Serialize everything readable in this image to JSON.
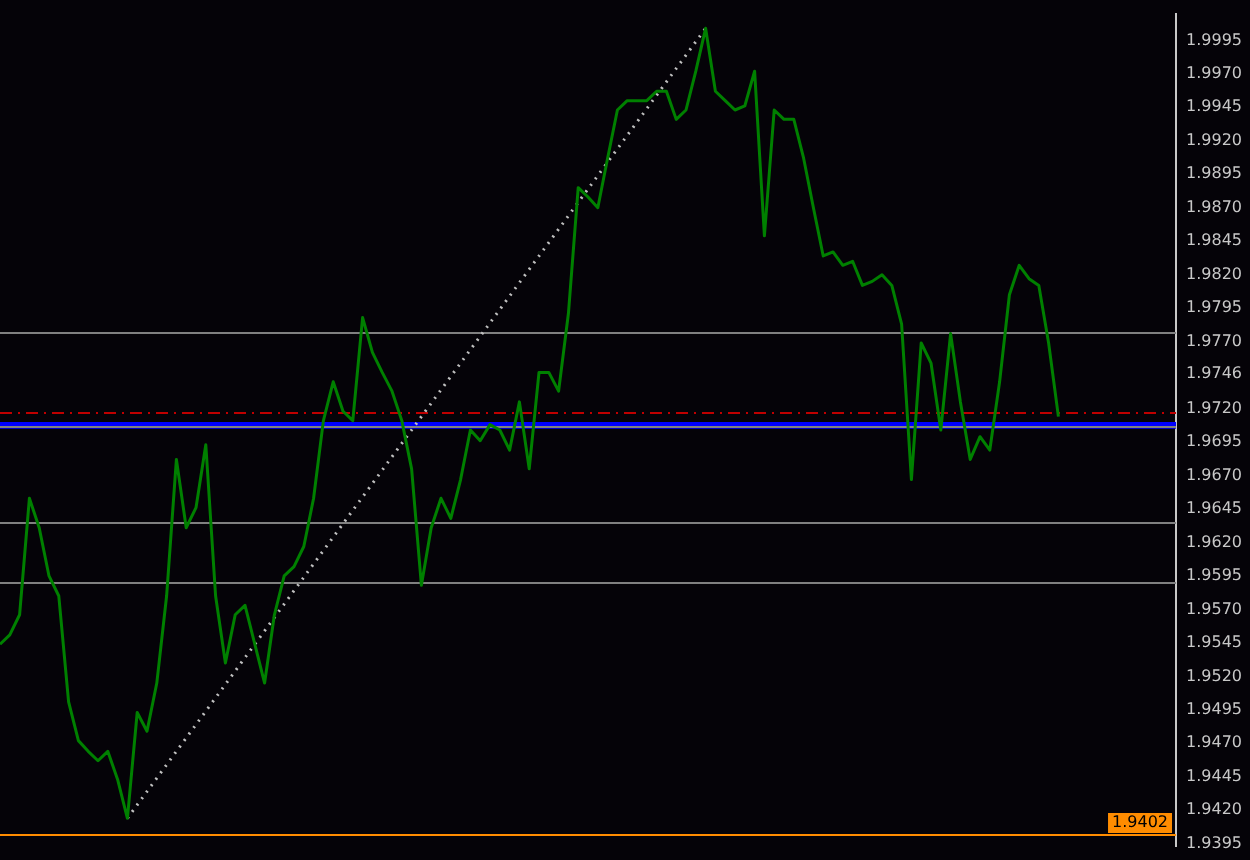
{
  "chart_data": {
    "type": "line",
    "tick_labels": "y",
    "grid": false,
    "legend": false,
    "marker": "none",
    "categories": [
      null,
      null,
      null,
      null,
      null,
      null,
      null,
      null,
      null,
      null,
      null,
      null,
      null,
      null,
      null,
      null,
      null,
      null,
      null,
      null,
      null,
      null,
      null,
      null,
      null,
      null,
      null,
      null,
      null,
      null,
      null,
      null,
      null,
      null,
      null,
      null,
      null,
      null,
      null,
      null,
      null,
      null,
      null,
      null,
      null,
      null,
      null,
      null,
      null,
      null,
      null,
      null,
      null,
      null,
      null,
      null,
      null,
      null,
      null,
      null,
      null,
      null,
      null,
      null,
      null,
      null,
      null,
      null,
      null,
      null,
      null,
      null,
      null,
      null,
      null,
      null,
      null,
      null,
      null,
      null,
      null,
      null,
      null,
      null,
      null,
      null,
      null,
      null,
      null,
      null,
      null,
      null,
      null,
      null,
      null,
      null,
      null,
      null,
      null,
      null,
      null,
      null,
      null,
      null,
      null,
      null,
      null,
      null,
      null,
      null,
      null,
      null,
      null,
      null,
      null,
      null,
      null,
      null,
      null,
      null,
      null
    ],
    "ylim": [
      1.9393,
      2.0015
    ],
    "yticks": [
      {
        "value": 1.9995,
        "label": "1.9995"
      },
      {
        "value": 1.997,
        "label": "1.9970"
      },
      {
        "value": 1.9945,
        "label": "1.9945"
      },
      {
        "value": 1.992,
        "label": "1.9920"
      },
      {
        "value": 1.9895,
        "label": "1.9895"
      },
      {
        "value": 1.987,
        "label": "1.9870"
      },
      {
        "value": 1.9845,
        "label": "1.9845"
      },
      {
        "value": 1.982,
        "label": "1.9820"
      },
      {
        "value": 1.9795,
        "label": "1.9795"
      },
      {
        "value": 1.977,
        "label": "1.9770"
      },
      {
        "value": 1.9746,
        "label": "1.9746"
      },
      {
        "value": 1.972,
        "label": "1.9720"
      },
      {
        "value": 1.9695,
        "label": "1.9695"
      },
      {
        "value": 1.967,
        "label": "1.9670"
      },
      {
        "value": 1.9645,
        "label": "1.9645"
      },
      {
        "value": 1.962,
        "label": "1.9620"
      },
      {
        "value": 1.9595,
        "label": "1.9595"
      },
      {
        "value": 1.957,
        "label": "1.9570"
      },
      {
        "value": 1.9545,
        "label": "1.9545"
      },
      {
        "value": 1.952,
        "label": "1.9520"
      },
      {
        "value": 1.9495,
        "label": "1.9495"
      },
      {
        "value": 1.947,
        "label": "1.9470"
      },
      {
        "value": 1.9445,
        "label": "1.9445"
      },
      {
        "value": 1.942,
        "label": "1.9420"
      },
      {
        "value": 1.9395,
        "label": "1.9395"
      }
    ],
    "series": [
      {
        "color": "#008000",
        "values": [
          1.9544,
          1.9551,
          1.9566,
          1.9653,
          1.9631,
          1.9595,
          1.958,
          1.9501,
          1.9472,
          1.9464,
          1.9457,
          1.9464,
          1.9443,
          1.9414,
          1.9493,
          1.9479,
          1.9515,
          1.958,
          1.9682,
          1.9631,
          1.9646,
          1.9693,
          1.958,
          1.953,
          1.9566,
          1.9573,
          1.9544,
          1.9515,
          1.9566,
          1.9595,
          1.9602,
          1.9617,
          1.9653,
          1.9711,
          1.974,
          1.9718,
          1.9711,
          1.9788,
          1.9762,
          1.9747,
          1.9733,
          1.9711,
          1.9675,
          1.9588,
          1.9631,
          1.9653,
          1.9638,
          1.9667,
          1.9704,
          1.9696,
          1.9708,
          1.9704,
          1.9689,
          1.9725,
          1.9675,
          1.9747,
          1.9747,
          1.9733,
          1.9791,
          1.9885,
          1.9878,
          1.987,
          1.9907,
          1.9943,
          1.995,
          1.995,
          1.995,
          1.9957,
          1.9957,
          1.9936,
          1.9943,
          1.9972,
          2.0004,
          1.9957,
          1.995,
          1.9943,
          1.9946,
          1.9972,
          1.9849,
          1.9943,
          1.9936,
          1.9936,
          1.9907,
          1.987,
          1.9834,
          1.9837,
          1.9827,
          1.983,
          1.9812,
          1.9815,
          1.982,
          1.9812,
          1.9783,
          1.9667,
          1.9769,
          1.9754,
          1.9704,
          1.9776,
          1.9725,
          1.9682,
          1.9699,
          1.9689,
          1.974,
          1.9805,
          1.9827,
          1.9817,
          1.9812,
          1.9769,
          1.9714,
          null,
          null,
          null,
          null,
          null,
          null,
          null,
          null,
          null,
          null,
          null,
          null
        ]
      },
      {
        "color": "#c0c0c0",
        "line_style": "dotted",
        "values": [
          null,
          null,
          null,
          null,
          null,
          null,
          null,
          null,
          null,
          null,
          null,
          null,
          null,
          1.9414,
          null,
          null,
          null,
          null,
          null,
          null,
          null,
          null,
          null,
          null,
          null,
          null,
          null,
          null,
          null,
          null,
          null,
          null,
          null,
          null,
          null,
          null,
          null,
          null,
          null,
          null,
          null,
          null,
          null,
          null,
          null,
          null,
          null,
          null,
          null,
          null,
          null,
          null,
          null,
          null,
          null,
          null,
          null,
          null,
          null,
          null,
          null,
          null,
          null,
          null,
          null,
          null,
          null,
          null,
          null,
          null,
          null,
          null,
          2.0004,
          null,
          null,
          null,
          null,
          null,
          null,
          null,
          null,
          null,
          null,
          null,
          null,
          null,
          null,
          null,
          null,
          null,
          null,
          null,
          null,
          null,
          null,
          null,
          null,
          null,
          null,
          null,
          null,
          null,
          null,
          null,
          null,
          null,
          null,
          null,
          null,
          null,
          null,
          null,
          null,
          null,
          null,
          null,
          null,
          null,
          null,
          null,
          null
        ]
      }
    ],
    "ref_lines": [
      {
        "axis": "y",
        "value": 1.9777,
        "color": "#808080"
      },
      {
        "axis": "y",
        "value": 1.9707,
        "color": "#808080"
      },
      {
        "axis": "y",
        "value": 1.9636,
        "color": "#808080"
      },
      {
        "axis": "y",
        "value": 1.959,
        "color": "#808080"
      },
      {
        "axis": "y",
        "value": 1.9717,
        "color": "#c00000",
        "line_style": "dashed"
      },
      {
        "axis": "y",
        "value": 1.9402,
        "color": "#ff8c00",
        "label": "1.9402"
      }
    ],
    "bands": [
      {
        "axis": "y",
        "from": 1.9705,
        "to": 1.971,
        "color": "#0000ff"
      }
    ]
  }
}
